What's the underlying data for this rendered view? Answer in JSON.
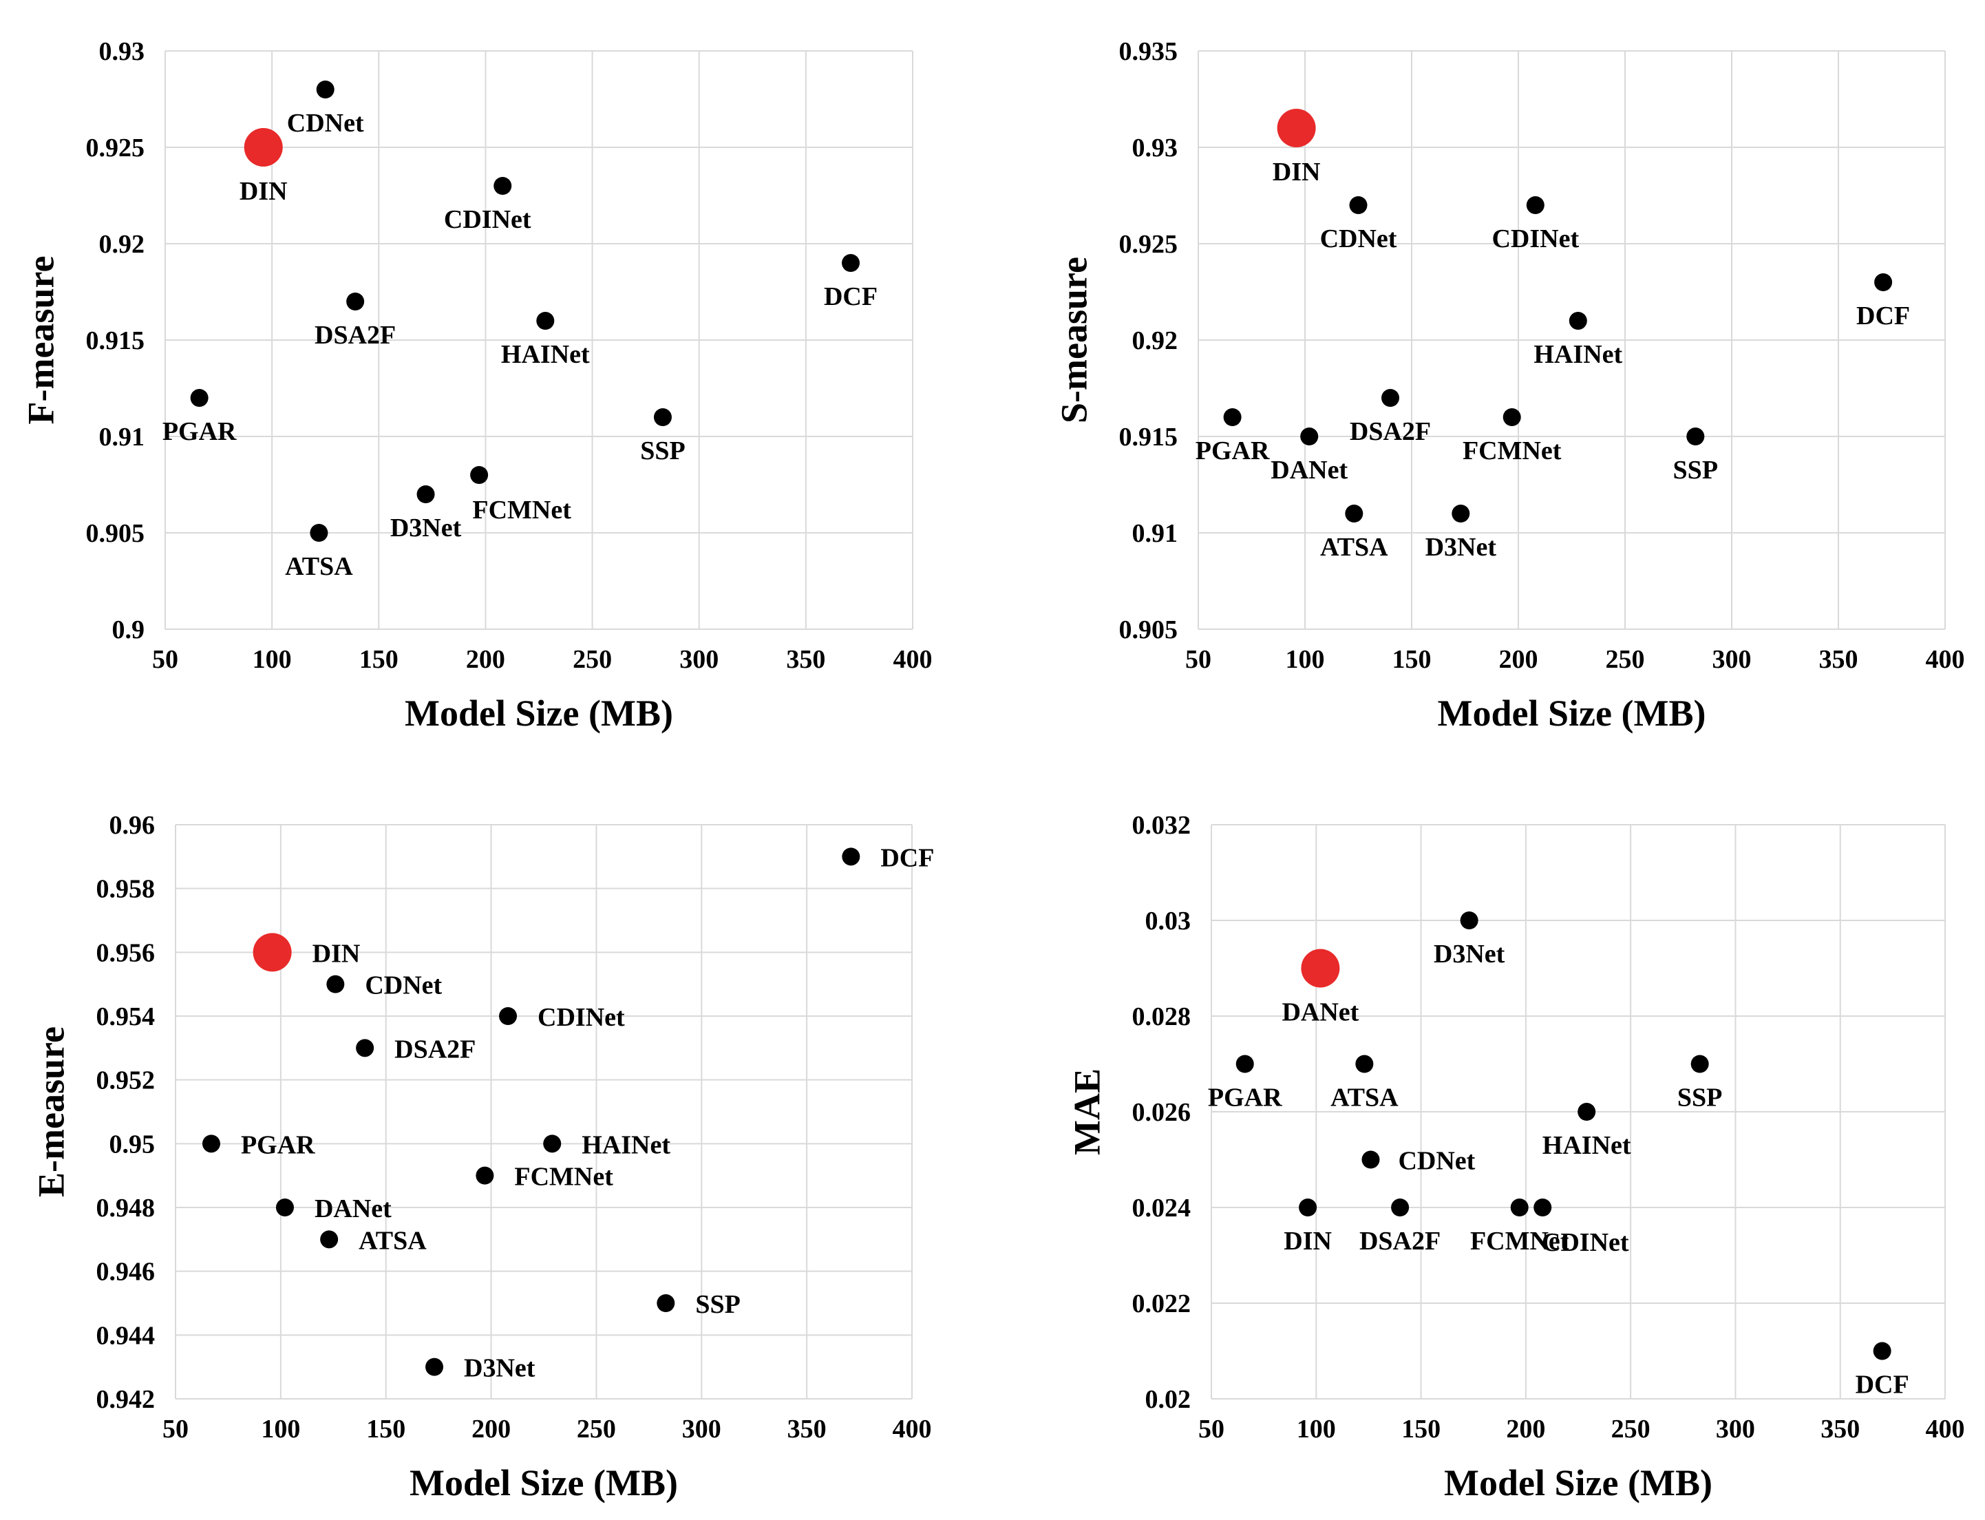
{
  "chart_data": [
    {
      "type": "scatter",
      "xlabel": "Model Size (MB)",
      "ylabel": "F-measure",
      "xlim": [
        50,
        400
      ],
      "ylim": [
        0.9,
        0.93
      ],
      "xticks": [
        "50",
        "100",
        "150",
        "200",
        "250",
        "300",
        "350",
        "400"
      ],
      "yticks": [
        "0.93",
        "0.925",
        "0.92",
        "0.915",
        "0.91",
        "0.905",
        "0.9"
      ],
      "grid": true,
      "highlight_color": "#e82a2a",
      "point_color": "#000000",
      "points": [
        {
          "label": "CDNet",
          "x": 125,
          "y": 0.928,
          "highlight": false,
          "lpos": "below"
        },
        {
          "label": "DIN",
          "x": 96,
          "y": 0.925,
          "highlight": true,
          "lpos": "below"
        },
        {
          "label": "CDINet",
          "x": 208,
          "y": 0.923,
          "highlight": false,
          "lpos": "below-left"
        },
        {
          "label": "DCF",
          "x": 371,
          "y": 0.919,
          "highlight": false,
          "lpos": "below"
        },
        {
          "label": "DSA2F",
          "x": 139,
          "y": 0.917,
          "highlight": false,
          "lpos": "below"
        },
        {
          "label": "HAINet",
          "x": 228,
          "y": 0.916,
          "highlight": false,
          "lpos": "below"
        },
        {
          "label": "PGAR",
          "x": 66,
          "y": 0.912,
          "highlight": false,
          "lpos": "below"
        },
        {
          "label": "SSP",
          "x": 283,
          "y": 0.911,
          "highlight": false,
          "lpos": "below"
        },
        {
          "label": "FCMNet",
          "x": 197,
          "y": 0.908,
          "highlight": false,
          "lpos": "below-right"
        },
        {
          "label": "D3Net",
          "x": 172,
          "y": 0.907,
          "highlight": false,
          "lpos": "below"
        },
        {
          "label": "ATSA",
          "x": 122,
          "y": 0.905,
          "highlight": false,
          "lpos": "below"
        }
      ]
    },
    {
      "type": "scatter",
      "xlabel": "Model Size (MB)",
      "ylabel": "S-measure",
      "xlim": [
        50,
        400
      ],
      "ylim": [
        0.905,
        0.935
      ],
      "xticks": [
        "50",
        "100",
        "150",
        "200",
        "250",
        "300",
        "350",
        "400"
      ],
      "yticks": [
        "0.935",
        "0.93",
        "0.925",
        "0.92",
        "0.915",
        "0.91",
        "0.905"
      ],
      "grid": true,
      "highlight_color": "#e82a2a",
      "point_color": "#000000",
      "points": [
        {
          "label": "DIN",
          "x": 96,
          "y": 0.931,
          "highlight": true,
          "lpos": "below"
        },
        {
          "label": "CDNet",
          "x": 125,
          "y": 0.927,
          "highlight": false,
          "lpos": "below"
        },
        {
          "label": "CDINet",
          "x": 208,
          "y": 0.927,
          "highlight": false,
          "lpos": "below"
        },
        {
          "label": "DCF",
          "x": 371,
          "y": 0.923,
          "highlight": false,
          "lpos": "below"
        },
        {
          "label": "HAINet",
          "x": 228,
          "y": 0.921,
          "highlight": false,
          "lpos": "below"
        },
        {
          "label": "PGAR",
          "x": 66,
          "y": 0.916,
          "highlight": false,
          "lpos": "below"
        },
        {
          "label": "DSA2F",
          "x": 140,
          "y": 0.917,
          "highlight": false,
          "lpos": "below"
        },
        {
          "label": "FCMNet",
          "x": 197,
          "y": 0.916,
          "highlight": false,
          "lpos": "below"
        },
        {
          "label": "DANet",
          "x": 102,
          "y": 0.915,
          "highlight": false,
          "lpos": "below"
        },
        {
          "label": "SSP",
          "x": 283,
          "y": 0.915,
          "highlight": false,
          "lpos": "below"
        },
        {
          "label": "ATSA",
          "x": 123,
          "y": 0.911,
          "highlight": false,
          "lpos": "below"
        },
        {
          "label": "D3Net",
          "x": 173,
          "y": 0.911,
          "highlight": false,
          "lpos": "below"
        }
      ]
    },
    {
      "type": "scatter",
      "xlabel": "Model Size (MB)",
      "ylabel": "E-measure",
      "xlim": [
        50,
        400
      ],
      "ylim": [
        0.942,
        0.96
      ],
      "xticks": [
        "50",
        "100",
        "150",
        "200",
        "250",
        "300",
        "350",
        "400"
      ],
      "yticks": [
        "0.96",
        "0.958",
        "0.956",
        "0.954",
        "0.952",
        "0.95",
        "0.948",
        "0.946",
        "0.944",
        "0.942"
      ],
      "grid": true,
      "highlight_color": "#e82a2a",
      "point_color": "#000000",
      "points": [
        {
          "label": "DCF",
          "x": 371,
          "y": 0.959,
          "highlight": false,
          "lpos": "right"
        },
        {
          "label": "DIN",
          "x": 96,
          "y": 0.956,
          "highlight": true,
          "lpos": "right"
        },
        {
          "label": "CDNet",
          "x": 126,
          "y": 0.955,
          "highlight": false,
          "lpos": "right"
        },
        {
          "label": "CDINet",
          "x": 208,
          "y": 0.954,
          "highlight": false,
          "lpos": "right"
        },
        {
          "label": "DSA2F",
          "x": 140,
          "y": 0.953,
          "highlight": false,
          "lpos": "right"
        },
        {
          "label": "PGAR",
          "x": 67,
          "y": 0.95,
          "highlight": false,
          "lpos": "right"
        },
        {
          "label": "HAINet",
          "x": 229,
          "y": 0.95,
          "highlight": false,
          "lpos": "right"
        },
        {
          "label": "FCMNet",
          "x": 197,
          "y": 0.949,
          "highlight": false,
          "lpos": "right"
        },
        {
          "label": "DANet",
          "x": 102,
          "y": 0.948,
          "highlight": false,
          "lpos": "right"
        },
        {
          "label": "ATSA",
          "x": 123,
          "y": 0.947,
          "highlight": false,
          "lpos": "right"
        },
        {
          "label": "SSP",
          "x": 283,
          "y": 0.945,
          "highlight": false,
          "lpos": "right"
        },
        {
          "label": "D3Net",
          "x": 173,
          "y": 0.943,
          "highlight": false,
          "lpos": "right"
        }
      ]
    },
    {
      "type": "scatter",
      "xlabel": "Model Size (MB)",
      "ylabel": "MAE",
      "xlim": [
        50,
        400
      ],
      "ylim": [
        0.02,
        0.032
      ],
      "xticks": [
        "50",
        "100",
        "150",
        "200",
        "250",
        "300",
        "350",
        "400"
      ],
      "yticks": [
        "0.032",
        "0.03",
        "0.028",
        "0.026",
        "0.024",
        "0.022",
        "0.02"
      ],
      "grid": true,
      "highlight_color": "#e82a2a",
      "point_color": "#000000",
      "points": [
        {
          "label": "D3Net",
          "x": 173,
          "y": 0.03,
          "highlight": false,
          "lpos": "below"
        },
        {
          "label": "DANet",
          "x": 102,
          "y": 0.029,
          "highlight": true,
          "lpos": "below"
        },
        {
          "label": "PGAR",
          "x": 66,
          "y": 0.027,
          "highlight": false,
          "lpos": "below"
        },
        {
          "label": "ATSA",
          "x": 123,
          "y": 0.027,
          "highlight": false,
          "lpos": "below"
        },
        {
          "label": "SSP",
          "x": 283,
          "y": 0.027,
          "highlight": false,
          "lpos": "below"
        },
        {
          "label": "HAINet",
          "x": 229,
          "y": 0.026,
          "highlight": false,
          "lpos": "below"
        },
        {
          "label": "CDNet",
          "x": 126,
          "y": 0.025,
          "highlight": false,
          "lpos": "right"
        },
        {
          "label": "DIN",
          "x": 96,
          "y": 0.024,
          "highlight": false,
          "lpos": "below"
        },
        {
          "label": "DSA2F",
          "x": 140,
          "y": 0.024,
          "highlight": false,
          "lpos": "below"
        },
        {
          "label": "FCMNet",
          "x": 197,
          "y": 0.024,
          "highlight": false,
          "lpos": "below"
        },
        {
          "label": "CDINet",
          "x": 208,
          "y": 0.024,
          "highlight": false,
          "lpos": "below-right"
        },
        {
          "label": "DCF",
          "x": 370,
          "y": 0.021,
          "highlight": false,
          "lpos": "below"
        }
      ]
    }
  ]
}
